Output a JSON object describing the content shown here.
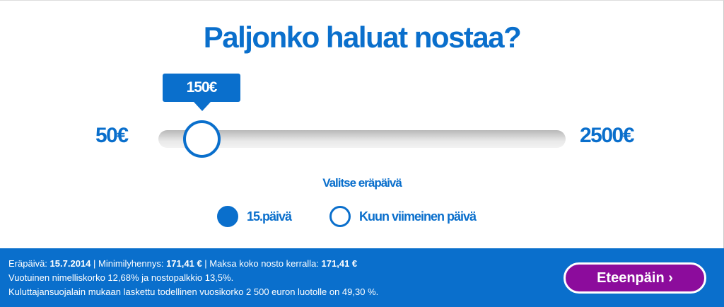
{
  "title": "Paljonko haluat nostaa?",
  "slider": {
    "value_label": "150€",
    "value": 150,
    "min": 50,
    "max": 2500,
    "min_label": "50€",
    "max_label": "2500€"
  },
  "due_date": {
    "label": "Valitse eräpäivä",
    "options": [
      {
        "label": "15.päivä",
        "selected": true
      },
      {
        "label": "Kuun viimeinen päivä",
        "selected": false
      }
    ]
  },
  "footer": {
    "l1": {
      "k1": "Eräpäivä: ",
      "v1": "15.7.2014",
      "k2": " | Minimilyhennys: ",
      "v2": "171,41 €",
      "k3": " | Maksa koko nosto kerralla: ",
      "v3": "171,41 €"
    },
    "line2": "Vuotuinen nimelliskorko 12,68% ja nostopalkkio 13,5%.",
    "line3": "Kuluttajansuojalain mukaan laskettu todellinen vuosikorko 2 500 euron luotolle on 49,30 %."
  },
  "next_button": "Eteenpäin ›",
  "colors": {
    "primary": "#0a6fcc",
    "button": "#8c0c9c"
  }
}
